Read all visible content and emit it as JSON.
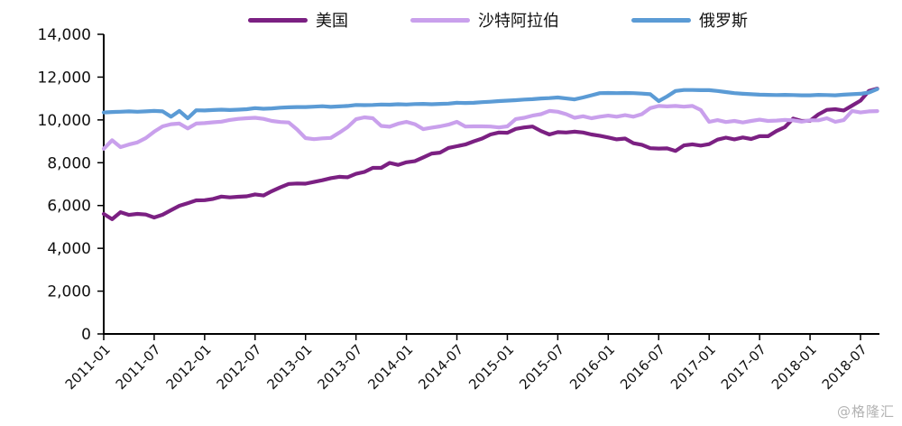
{
  "watermark": "@格隆汇",
  "axes": {
    "y_tick_labels": [
      "0",
      "2,000",
      "4,000",
      "6,000",
      "8,000",
      "10,000",
      "12,000",
      "14,000"
    ],
    "y_ticks": [
      0,
      2000,
      4000,
      6000,
      8000,
      10000,
      12000,
      14000
    ]
  },
  "chart_data": {
    "type": "line",
    "title": "",
    "xlabel": "",
    "ylabel": "",
    "ylim": [
      0,
      14000
    ],
    "grid": false,
    "legend_position": "top",
    "x_tick_labels": [
      "2011-01",
      "2011-07",
      "2012-01",
      "2012-07",
      "2013-01",
      "2013-07",
      "2014-01",
      "2014-07",
      "2015-01",
      "2015-07",
      "2016-01",
      "2016-07",
      "2017-01",
      "2017-07",
      "2018-01",
      "2018-07"
    ],
    "x": [
      "2011-01",
      "2011-02",
      "2011-03",
      "2011-04",
      "2011-05",
      "2011-06",
      "2011-07",
      "2011-08",
      "2011-09",
      "2011-10",
      "2011-11",
      "2011-12",
      "2012-01",
      "2012-02",
      "2012-03",
      "2012-04",
      "2012-05",
      "2012-06",
      "2012-07",
      "2012-08",
      "2012-09",
      "2012-10",
      "2012-11",
      "2012-12",
      "2013-01",
      "2013-02",
      "2013-03",
      "2013-04",
      "2013-05",
      "2013-06",
      "2013-07",
      "2013-08",
      "2013-09",
      "2013-10",
      "2013-11",
      "2013-12",
      "2014-01",
      "2014-02",
      "2014-03",
      "2014-04",
      "2014-05",
      "2014-06",
      "2014-07",
      "2014-08",
      "2014-09",
      "2014-10",
      "2014-11",
      "2014-12",
      "2015-01",
      "2015-02",
      "2015-03",
      "2015-04",
      "2015-05",
      "2015-06",
      "2015-07",
      "2015-08",
      "2015-09",
      "2015-10",
      "2015-11",
      "2015-12",
      "2016-01",
      "2016-02",
      "2016-03",
      "2016-04",
      "2016-05",
      "2016-06",
      "2016-07",
      "2016-08",
      "2016-09",
      "2016-10",
      "2016-11",
      "2016-12",
      "2017-01",
      "2017-02",
      "2017-03",
      "2017-04",
      "2017-05",
      "2017-06",
      "2017-07",
      "2017-08",
      "2017-09",
      "2017-10",
      "2017-11",
      "2017-12",
      "2018-01",
      "2018-02",
      "2018-03",
      "2018-04",
      "2018-05",
      "2018-06",
      "2018-07",
      "2018-08",
      "2018-09"
    ],
    "series": [
      {
        "id": "us",
        "name": "美国",
        "color": "#7b2082",
        "values": [
          5610,
          5360,
          5690,
          5560,
          5610,
          5580,
          5440,
          5570,
          5780,
          5990,
          6110,
          6240,
          6250,
          6310,
          6420,
          6380,
          6410,
          6430,
          6520,
          6470,
          6670,
          6850,
          7010,
          7030,
          7020,
          7100,
          7180,
          7280,
          7340,
          7320,
          7480,
          7570,
          7760,
          7760,
          7990,
          7900,
          8020,
          8070,
          8250,
          8430,
          8470,
          8690,
          8770,
          8850,
          9000,
          9130,
          9320,
          9410,
          9400,
          9580,
          9650,
          9690,
          9480,
          9320,
          9430,
          9410,
          9450,
          9410,
          9320,
          9260,
          9180,
          9090,
          9130,
          8910,
          8840,
          8680,
          8660,
          8670,
          8550,
          8810,
          8860,
          8800,
          8870,
          9080,
          9170,
          9090,
          9180,
          9110,
          9240,
          9240,
          9480,
          9660,
          10060,
          9950,
          9960,
          10260,
          10470,
          10500,
          10440,
          10670,
          10900,
          11350,
          11460
        ]
      },
      {
        "id": "saudi",
        "name": "沙特阿拉伯",
        "color": "#c9a0ec",
        "values": [
          8650,
          9050,
          8730,
          8850,
          8950,
          9150,
          9450,
          9700,
          9800,
          9830,
          9600,
          9830,
          9850,
          9890,
          9920,
          10000,
          10050,
          10080,
          10100,
          10050,
          9950,
          9900,
          9880,
          9550,
          9150,
          9100,
          9140,
          9160,
          9400,
          9660,
          10030,
          10120,
          10080,
          9720,
          9680,
          9820,
          9910,
          9800,
          9570,
          9640,
          9700,
          9780,
          9910,
          9690,
          9700,
          9700,
          9690,
          9650,
          9700,
          10040,
          10100,
          10200,
          10270,
          10420,
          10380,
          10270,
          10100,
          10170,
          10080,
          10150,
          10200,
          10150,
          10220,
          10150,
          10270,
          10550,
          10650,
          10630,
          10650,
          10620,
          10650,
          10460,
          9910,
          9990,
          9900,
          9950,
          9880,
          9950,
          10010,
          9950,
          9970,
          10000,
          9980,
          9920,
          9980,
          9980,
          10080,
          9910,
          9990,
          10420,
          10350,
          10400,
          10410
        ]
      },
      {
        "id": "russia",
        "name": "俄罗斯",
        "color": "#5b9bd5",
        "values": [
          10350,
          10370,
          10380,
          10400,
          10380,
          10400,
          10420,
          10400,
          10150,
          10420,
          10080,
          10450,
          10440,
          10460,
          10480,
          10460,
          10480,
          10500,
          10550,
          10520,
          10540,
          10570,
          10590,
          10600,
          10600,
          10620,
          10640,
          10610,
          10630,
          10650,
          10700,
          10690,
          10700,
          10720,
          10710,
          10730,
          10720,
          10740,
          10750,
          10730,
          10750,
          10760,
          10800,
          10790,
          10800,
          10830,
          10850,
          10880,
          10900,
          10920,
          10950,
          10970,
          11000,
          11020,
          11050,
          11000,
          10960,
          11050,
          11150,
          11250,
          11260,
          11250,
          11260,
          11250,
          11230,
          11200,
          10880,
          11100,
          11350,
          11400,
          11400,
          11390,
          11390,
          11350,
          11300,
          11250,
          11220,
          11200,
          11180,
          11170,
          11160,
          11170,
          11160,
          11150,
          11150,
          11170,
          11160,
          11150,
          11180,
          11200,
          11220,
          11280,
          11440
        ]
      }
    ]
  }
}
